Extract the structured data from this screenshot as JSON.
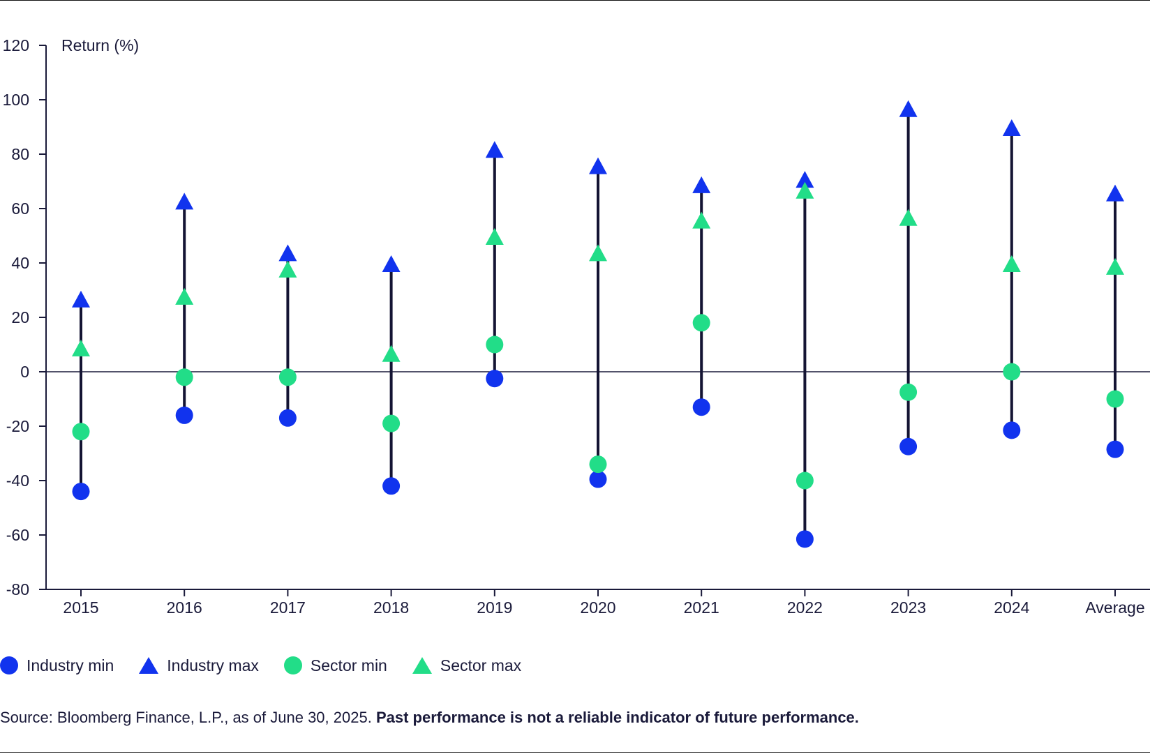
{
  "chart_data": {
    "type": "scatter",
    "ylabel": "Return (%)",
    "ylim": [
      -80,
      120
    ],
    "yticks": [
      "120",
      "100",
      "80",
      "60",
      "40",
      "20",
      "0",
      "-20",
      "-40",
      "-60",
      "-80"
    ],
    "categories": [
      "2015",
      "2016",
      "2017",
      "2018",
      "2019",
      "2020",
      "2021",
      "2022",
      "2023",
      "2024",
      "Average"
    ],
    "series": [
      {
        "name": "Industry min",
        "marker": "circle",
        "color": "#1133ee",
        "values": [
          -44,
          -16,
          -17,
          -42,
          -2.5,
          -39.5,
          -13,
          -61.5,
          -27.5,
          -21.5,
          -28.5
        ]
      },
      {
        "name": "Industry max",
        "marker": "triangle",
        "color": "#1133ee",
        "values": [
          26,
          62,
          43,
          39,
          81,
          75,
          68,
          70,
          96,
          89,
          65
        ]
      },
      {
        "name": "Sector min",
        "marker": "circle",
        "color": "#22dd88",
        "values": [
          -22,
          -2,
          -2,
          -19,
          10,
          -34,
          18,
          -40,
          -7.5,
          0,
          -10
        ]
      },
      {
        "name": "Sector max",
        "marker": "triangle",
        "color": "#22dd88",
        "values": [
          8,
          27,
          37,
          6,
          49,
          43,
          55,
          66,
          56,
          39,
          38
        ]
      }
    ],
    "zero_line": true,
    "grid": false,
    "legend_position": "bottom-left"
  },
  "legend": [
    {
      "label": "Industry min"
    },
    {
      "label": "Industry max"
    },
    {
      "label": "Sector min"
    },
    {
      "label": "Sector max"
    }
  ],
  "source": {
    "text": "Source: Bloomberg Finance, L.P., as of June 30, 2025.",
    "bold": "Past performance is not a reliable indicator of future performance."
  },
  "colors": {
    "industry": "#1133ee",
    "sector": "#22dd88",
    "range_line": "#141433",
    "axis": "#1a1a3a"
  }
}
